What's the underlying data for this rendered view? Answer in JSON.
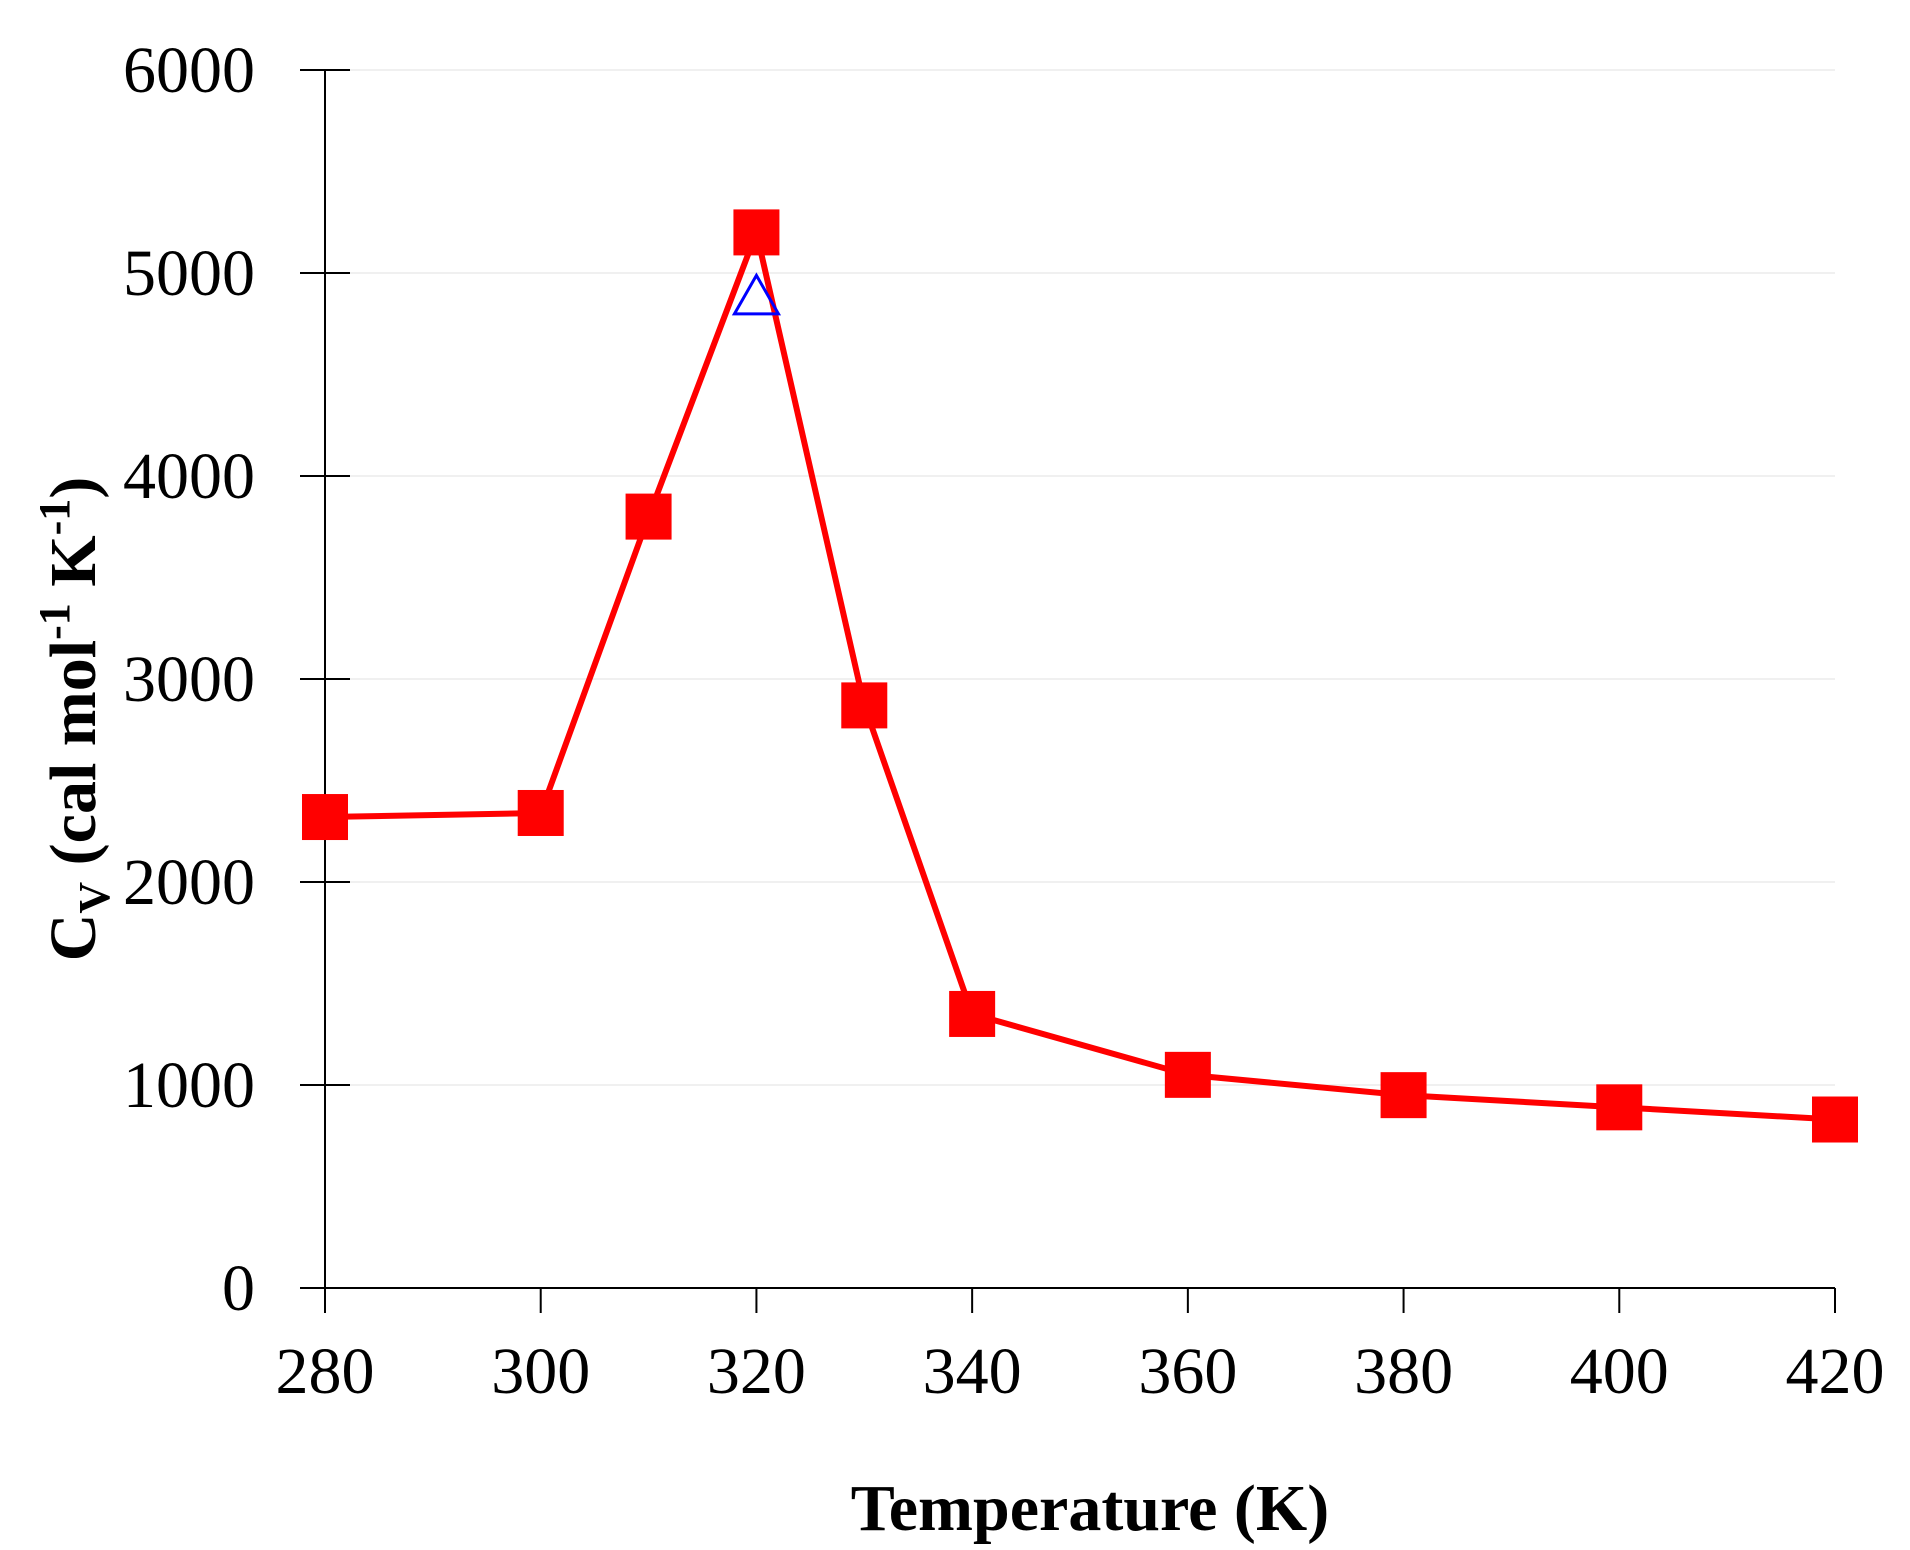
{
  "chart_data": {
    "type": "line",
    "xlabel": "Temperature (K)",
    "ylabel": {
      "main": "C",
      "sub": "V",
      "p1": " (cal mol",
      "sup1": "-1",
      "p2": " K",
      "sup2": "-1",
      "p3": ")"
    },
    "xlim": [
      280,
      420
    ],
    "ylim": [
      0,
      6000
    ],
    "xticks": [
      280,
      300,
      320,
      340,
      360,
      380,
      400,
      420
    ],
    "yticks": [
      0,
      1000,
      2000,
      3000,
      4000,
      5000,
      6000
    ],
    "grid": "horizontal",
    "legend": "none",
    "series": [
      {
        "marker": "square",
        "color": "#ff0000",
        "line": true,
        "points": [
          {
            "x": 280,
            "y": 2320
          },
          {
            "x": 300,
            "y": 2340
          },
          {
            "x": 310,
            "y": 3800
          },
          {
            "x": 320,
            "y": 5200
          },
          {
            "x": 330,
            "y": 2870
          },
          {
            "x": 340,
            "y": 1350
          },
          {
            "x": 360,
            "y": 1050
          },
          {
            "x": 380,
            "y": 950
          },
          {
            "x": 400,
            "y": 890
          },
          {
            "x": 420,
            "y": 830
          }
        ]
      },
      {
        "marker": "triangle-open",
        "color": "#0000ff",
        "line": false,
        "points": [
          {
            "x": 320,
            "y": 4880
          }
        ]
      }
    ]
  }
}
